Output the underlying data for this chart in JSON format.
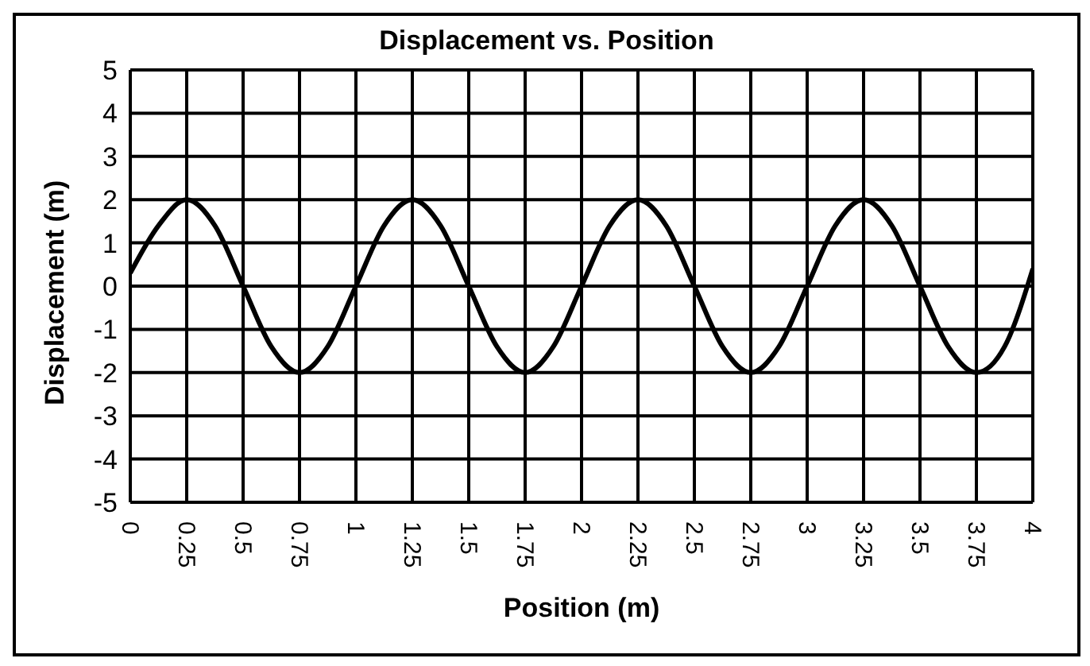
{
  "chart_data": {
    "type": "line",
    "title": "Displacement vs. Position",
    "xlabel": "Position (m)",
    "ylabel": "Displacement (m)",
    "x": [
      0,
      0.125,
      0.25,
      0.375,
      0.5,
      0.625,
      0.75,
      0.875,
      1,
      1.125,
      1.25,
      1.375,
      1.5,
      1.625,
      1.75,
      1.875,
      2,
      2.125,
      2.25,
      2.375,
      2.5,
      2.625,
      2.75,
      2.875,
      3,
      3.125,
      3.25,
      3.375,
      3.5,
      3.625,
      3.75,
      3.875,
      4
    ],
    "series": [
      {
        "color": "#000000",
        "values": [
          0.3,
          1.4,
          2,
          1.4,
          0,
          -1.4,
          -2,
          -1.4,
          0,
          1.4,
          2,
          1.4,
          0,
          -1.4,
          -2,
          -1.4,
          0,
          1.4,
          2,
          1.4,
          0,
          -1.4,
          -2,
          -1.4,
          0,
          1.4,
          2,
          1.4,
          0,
          -1.4,
          -2,
          -1.4,
          0.4
        ]
      }
    ],
    "xlim": [
      0,
      4
    ],
    "xticks": [
      0,
      0.25,
      0.5,
      0.75,
      1,
      1.25,
      1.5,
      1.75,
      2,
      2.25,
      2.5,
      2.75,
      3,
      3.25,
      3.5,
      3.75,
      4
    ],
    "ylim": [
      -5,
      5
    ],
    "yticks": [
      -5,
      -4,
      -3,
      -2,
      -1,
      0,
      1,
      2,
      3,
      4,
      5
    ],
    "grid": true,
    "legend": false,
    "marker": "none",
    "line_style": "solid"
  }
}
